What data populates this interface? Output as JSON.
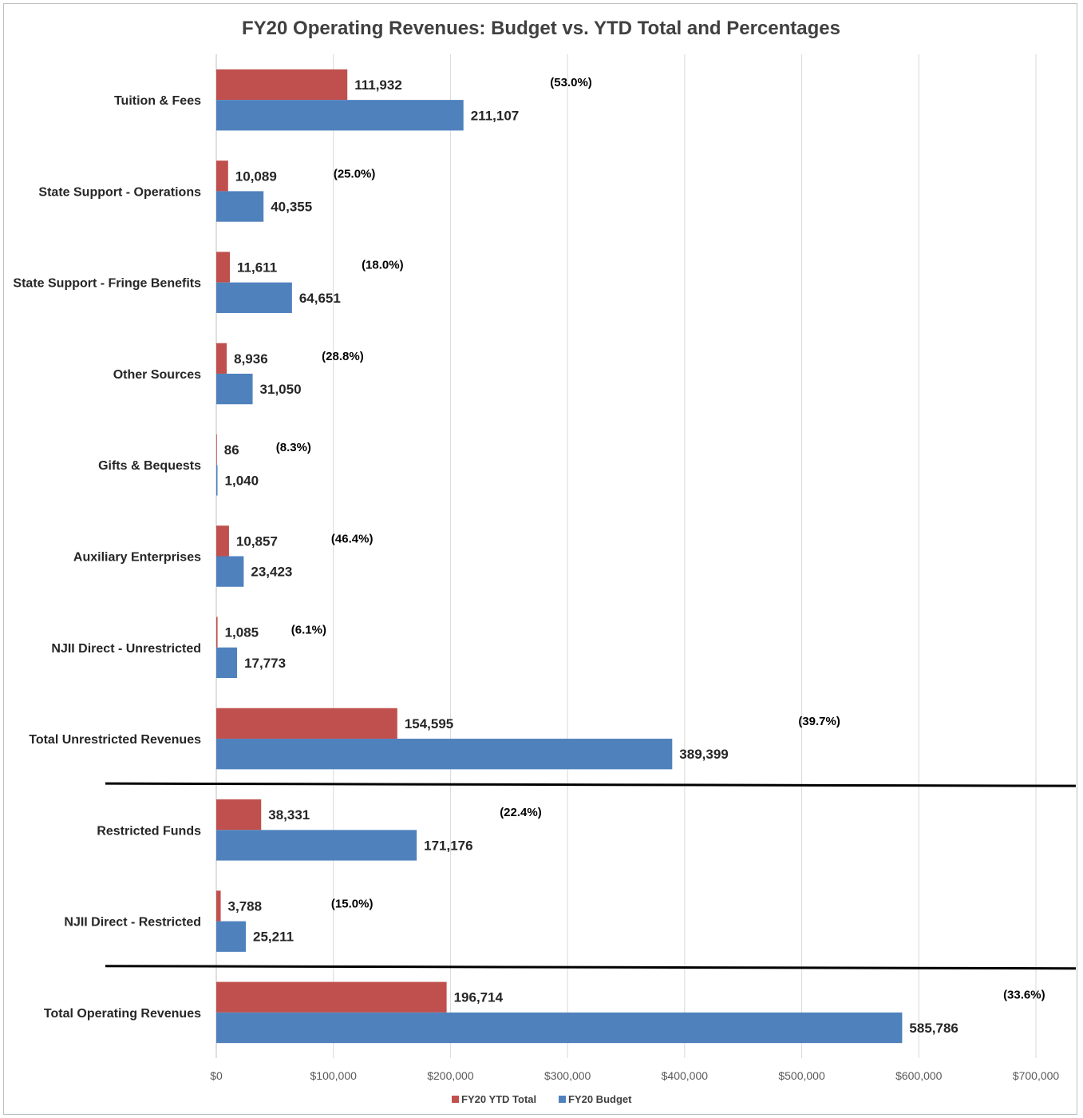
{
  "chart_data": {
    "type": "bar",
    "orientation": "horizontal",
    "title": "FY20 Operating Revenues: Budget vs. YTD Total and Percentages",
    "categories": [
      "Tuition & Fees",
      "State Support - Operations",
      "State Support - Fringe Benefits",
      "Other Sources",
      "Gifts & Bequests",
      "Auxiliary Enterprises",
      "NJII Direct - Unrestricted",
      "Total Unrestricted Revenues",
      "Restricted Funds",
      "NJII Direct - Restricted",
      "Total Operating Revenues"
    ],
    "series": [
      {
        "name": "FY20 YTD Total",
        "color": "#c0504d",
        "values": [
          111932,
          10089,
          11611,
          8936,
          86,
          10857,
          1085,
          154595,
          38331,
          3788,
          196714
        ],
        "labels": [
          "111,932",
          "10,089",
          "11,611",
          "8,936",
          "86",
          "10,857",
          "1,085",
          "154,595",
          "38,331",
          "3,788",
          "196,714"
        ]
      },
      {
        "name": "FY20 Budget",
        "color": "#4f81bd",
        "values": [
          211107,
          40355,
          64651,
          31050,
          1040,
          23423,
          17773,
          389399,
          171176,
          25211,
          585786
        ],
        "labels": [
          "211,107",
          "40,355",
          "64,651",
          "31,050",
          "1,040",
          "23,423",
          "17,773",
          "389,399",
          "171,176",
          "25,211",
          "585,786"
        ]
      }
    ],
    "percentages": [
      "(53.0%)",
      "(25.0%)",
      "(18.0%)",
      "(28.8%)",
      "(8.3%)",
      "(46.4%)",
      "(6.1%)",
      "(39.7%)",
      "(22.4%)",
      "(15.0%)",
      "(33.6%)"
    ],
    "percentage_positions": [
      303000,
      118000,
      142000,
      108000,
      66000,
      116000,
      79000,
      515000,
      260000,
      116000,
      690000
    ],
    "xlim": [
      0,
      700000
    ],
    "x_ticks": [
      0,
      100000,
      200000,
      300000,
      400000,
      500000,
      600000,
      700000
    ],
    "x_tick_labels": [
      "$0",
      "$100,000",
      "$200,000",
      "$300,000",
      "$400,000",
      "$500,000",
      "$600,000",
      "$700,000"
    ],
    "separator_after": [
      7,
      9
    ],
    "grid": true,
    "legend_position": "bottom",
    "gridline_color": "#d9d9d9"
  }
}
